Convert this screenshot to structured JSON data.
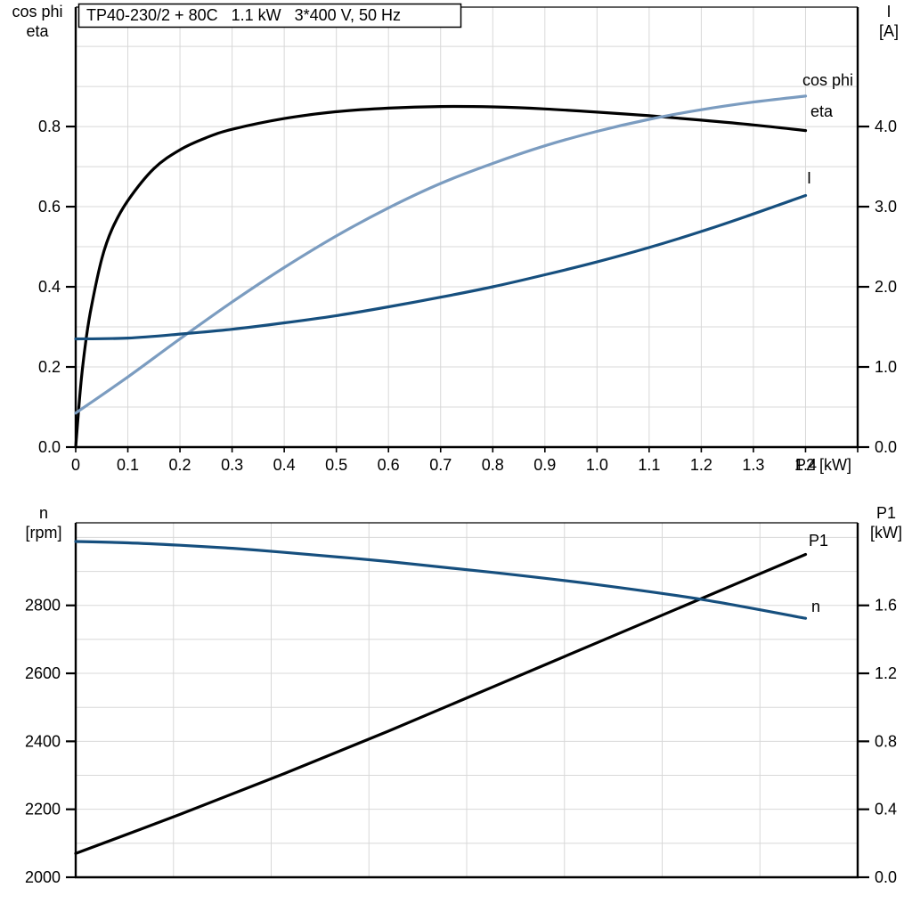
{
  "title": "TP40-230/2 + 80C   1.1 kW   3*400 V, 50 Hz",
  "colors": {
    "eta_black": "#000000",
    "cos_phi_blue": "#7B9CC0",
    "current_dark_blue": "#164F7E",
    "grid_gray": "#D8D8D8",
    "frame_black": "#000000"
  },
  "chart_data": [
    {
      "type": "line",
      "grid": true,
      "legend_position": "curve-end-labels",
      "x_axis": {
        "range": [
          0,
          1.5
        ],
        "grid_step": 0.1,
        "unit": "P2 [kW]",
        "tick_values": [
          0,
          0.1,
          0.2,
          0.3,
          0.4,
          0.5,
          0.6,
          0.7,
          0.8,
          0.9,
          1.0,
          1.1,
          1.2,
          1.3,
          1.4,
          1.5
        ],
        "tick_labels": [
          "0",
          "0.1",
          "0.2",
          "0.3",
          "0.4",
          "0.5",
          "0.6",
          "0.7",
          "0.8",
          "0.9",
          "1.0",
          "1.1",
          "1.2",
          "1.3",
          "1.4",
          ""
        ]
      },
      "left_axis": {
        "title": [
          "cos phi",
          "eta"
        ],
        "range": [
          0,
          1.098
        ],
        "grid_step": 0.1,
        "tick_values": [
          0,
          0.2,
          0.4,
          0.6,
          0.8
        ],
        "tick_labels": [
          "0.0",
          "0.2",
          "0.4",
          "0.6",
          "0.8"
        ]
      },
      "right_axis": {
        "title": [
          "I",
          "[A]"
        ],
        "range": [
          0,
          5.49
        ],
        "tick_values": [
          0,
          1,
          2,
          3,
          4
        ],
        "tick_labels": [
          "0.0",
          "1.0",
          "2.0",
          "3.0",
          "4.0"
        ]
      },
      "series": [
        {
          "name": "eta",
          "color": "#000000",
          "axis": "left",
          "x": [
            0,
            0.01,
            0.02,
            0.03,
            0.05,
            0.07,
            0.1,
            0.15,
            0.2,
            0.25,
            0.3,
            0.4,
            0.5,
            0.6,
            0.7,
            0.8,
            0.9,
            1.0,
            1.1,
            1.2,
            1.3,
            1.4
          ],
          "y": [
            0,
            0.16,
            0.27,
            0.35,
            0.47,
            0.545,
            0.615,
            0.695,
            0.742,
            0.772,
            0.793,
            0.82,
            0.837,
            0.846,
            0.85,
            0.849,
            0.844,
            0.836,
            0.827,
            0.816,
            0.804,
            0.79
          ]
        },
        {
          "name": "cos phi",
          "color": "#7B9CC0",
          "axis": "left",
          "x": [
            0,
            0.1,
            0.2,
            0.3,
            0.4,
            0.5,
            0.6,
            0.7,
            0.8,
            0.9,
            1.0,
            1.1,
            1.2,
            1.3,
            1.4
          ],
          "y": [
            0.085,
            0.175,
            0.27,
            0.362,
            0.448,
            0.527,
            0.597,
            0.658,
            0.708,
            0.752,
            0.788,
            0.818,
            0.842,
            0.861,
            0.876
          ]
        },
        {
          "name": "I",
          "color": "#164F7E",
          "axis": "right",
          "x": [
            0,
            0.1,
            0.2,
            0.3,
            0.4,
            0.5,
            0.6,
            0.7,
            0.8,
            0.9,
            1.0,
            1.1,
            1.2,
            1.3,
            1.4
          ],
          "y": [
            1.35,
            1.36,
            1.41,
            1.47,
            1.55,
            1.64,
            1.75,
            1.87,
            2.0,
            2.15,
            2.31,
            2.49,
            2.69,
            2.91,
            3.14
          ]
        }
      ]
    },
    {
      "type": "line",
      "grid": true,
      "legend_position": "curve-end-labels",
      "x_axis": {
        "range": [
          0,
          1.5
        ],
        "grid_divisions": 8,
        "unit": "",
        "tick_values": [],
        "tick_labels": []
      },
      "left_axis": {
        "title": [
          "n",
          "[rpm]"
        ],
        "range": [
          2000,
          3043
        ],
        "grid_step": 100,
        "tick_values": [
          2000,
          2200,
          2400,
          2600,
          2800
        ],
        "tick_labels": [
          "2000",
          "2200",
          "2400",
          "2600",
          "2800"
        ]
      },
      "right_axis": {
        "title": [
          "P1",
          "[kW]"
        ],
        "range": [
          0,
          2.086
        ],
        "tick_values": [
          0,
          0.4,
          0.8,
          1.2,
          1.6
        ],
        "tick_labels": [
          "0.0",
          "0.4",
          "0.8",
          "1.2",
          "1.6"
        ]
      },
      "series": [
        {
          "name": "P1",
          "color": "#000000",
          "axis": "right",
          "x": [
            0,
            0.2,
            0.4,
            0.6,
            0.8,
            1.0,
            1.2,
            1.4
          ],
          "y": [
            0.14,
            0.37,
            0.61,
            0.86,
            1.12,
            1.38,
            1.64,
            1.9
          ]
        },
        {
          "name": "n",
          "color": "#164F7E",
          "axis": "left",
          "x": [
            0,
            0.1,
            0.2,
            0.3,
            0.4,
            0.6,
            0.8,
            1.0,
            1.2,
            1.4
          ],
          "y": [
            2988,
            2984,
            2977,
            2968,
            2956,
            2929,
            2897,
            2861,
            2818,
            2762
          ]
        }
      ]
    }
  ]
}
